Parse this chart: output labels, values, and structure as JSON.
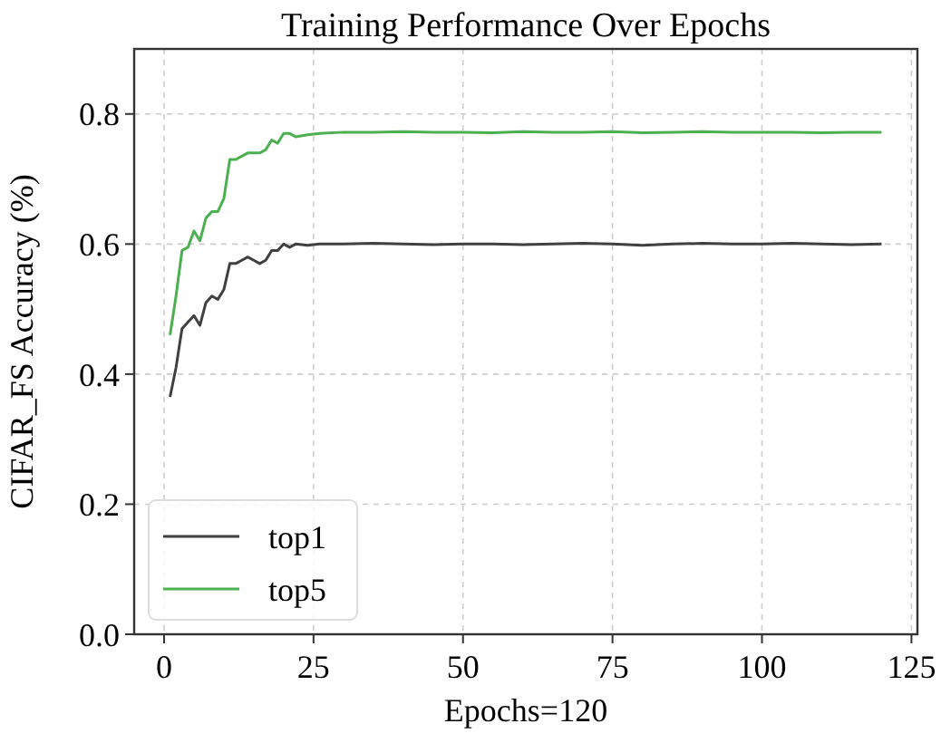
{
  "chart_data": {
    "type": "line",
    "title": "Training Performance Over Epochs",
    "xlabel": "Epochs=120",
    "ylabel": "CIFAR_FS Accuracy (%)",
    "xlim": [
      -5,
      126
    ],
    "xticks": [
      0,
      25,
      50,
      75,
      100,
      125
    ],
    "ylim": [
      0,
      0.9
    ],
    "yticks": [
      {
        "value": 0,
        "label": "0.0"
      },
      0.2,
      0.4,
      0.6,
      0.8
    ],
    "grid": true,
    "legend": "bottom left",
    "marker": "none",
    "line_style": "solid",
    "series": [
      {
        "name": "top1",
        "color": "#404040",
        "x": [
          1,
          2,
          3,
          4,
          5,
          6,
          7,
          8,
          9,
          10,
          11,
          12,
          13,
          14,
          15,
          16,
          17,
          18,
          19,
          20,
          21,
          22,
          24,
          26,
          30,
          35,
          40,
          45,
          50,
          55,
          60,
          65,
          70,
          75,
          80,
          85,
          90,
          95,
          100,
          105,
          110,
          115,
          120
        ],
        "values": [
          0.365,
          0.41,
          0.47,
          0.48,
          0.49,
          0.475,
          0.51,
          0.52,
          0.515,
          0.53,
          0.57,
          0.57,
          0.575,
          0.58,
          0.575,
          0.57,
          0.575,
          0.59,
          0.59,
          0.6,
          0.595,
          0.6,
          0.598,
          0.6,
          0.6,
          0.601,
          0.6,
          0.599,
          0.6,
          0.6,
          0.599,
          0.6,
          0.601,
          0.6,
          0.598,
          0.6,
          0.601,
          0.6,
          0.6,
          0.601,
          0.6,
          0.599,
          0.6
        ]
      },
      {
        "name": "top5",
        "color": "#4caf50",
        "x": [
          1,
          2,
          3,
          4,
          5,
          6,
          7,
          8,
          9,
          10,
          11,
          12,
          13,
          14,
          15,
          16,
          17,
          18,
          19,
          20,
          21,
          22,
          24,
          26,
          30,
          35,
          40,
          45,
          50,
          55,
          60,
          65,
          70,
          75,
          80,
          85,
          90,
          95,
          100,
          105,
          110,
          115,
          120
        ],
        "values": [
          0.46,
          0.52,
          0.59,
          0.595,
          0.62,
          0.605,
          0.64,
          0.65,
          0.65,
          0.67,
          0.73,
          0.73,
          0.735,
          0.74,
          0.74,
          0.74,
          0.745,
          0.76,
          0.755,
          0.77,
          0.77,
          0.765,
          0.768,
          0.77,
          0.772,
          0.772,
          0.773,
          0.772,
          0.772,
          0.771,
          0.773,
          0.772,
          0.772,
          0.773,
          0.771,
          0.772,
          0.773,
          0.772,
          0.772,
          0.772,
          0.771,
          0.772,
          0.772
        ]
      }
    ]
  }
}
